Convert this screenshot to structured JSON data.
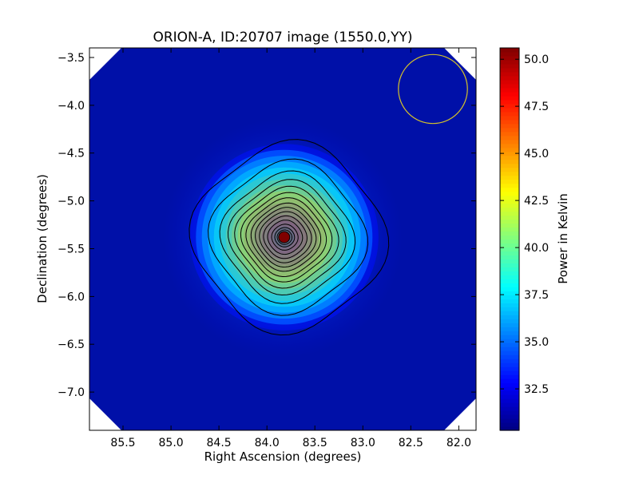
{
  "chart_data": {
    "type": "heatmap",
    "title": "ORION-A, ID:20707 image (1550.0,YY)",
    "xlabel": "Right Ascension (degrees)",
    "ylabel": "Declination (degrees)",
    "colorbar_label": "Power in Kelvin",
    "xlim": [
      85.85,
      81.82
    ],
    "ylim": [
      -7.4,
      -3.4
    ],
    "x_ticks": [
      85.5,
      85.0,
      84.5,
      84.0,
      83.5,
      83.0,
      82.5,
      82.0
    ],
    "x_tick_labels": [
      "85.5",
      "85.0",
      "84.5",
      "84.0",
      "83.5",
      "83.0",
      "82.5",
      "82.0"
    ],
    "y_ticks": [
      -3.5,
      -4.0,
      -4.5,
      -5.0,
      -5.5,
      -6.0,
      -6.5,
      -7.0
    ],
    "y_tick_labels": [
      "−3.5",
      "−4.0",
      "−4.5",
      "−5.0",
      "−5.5",
      "−6.0",
      "−6.5",
      "−7.0"
    ],
    "colorbar_range": [
      30.3,
      50.6
    ],
    "colorbar_ticks": [
      32.5,
      35.0,
      37.5,
      40.0,
      42.5,
      45.0,
      47.5,
      50.0
    ],
    "colorbar_tick_labels": [
      "32.5",
      "35.0",
      "37.5",
      "40.0",
      "42.5",
      "45.0",
      "47.5",
      "50.0"
    ],
    "colormap": "jet",
    "background_level": 30.6,
    "source": {
      "center_ra": 83.82,
      "center_dec": -5.38,
      "peak_kelvin": 50.6
    },
    "contour_count": 15,
    "beam_circle": {
      "center_ra": 82.27,
      "center_dec": -3.83,
      "radius_deg": 0.36,
      "color": "#d4c22a"
    },
    "grid": false
  }
}
